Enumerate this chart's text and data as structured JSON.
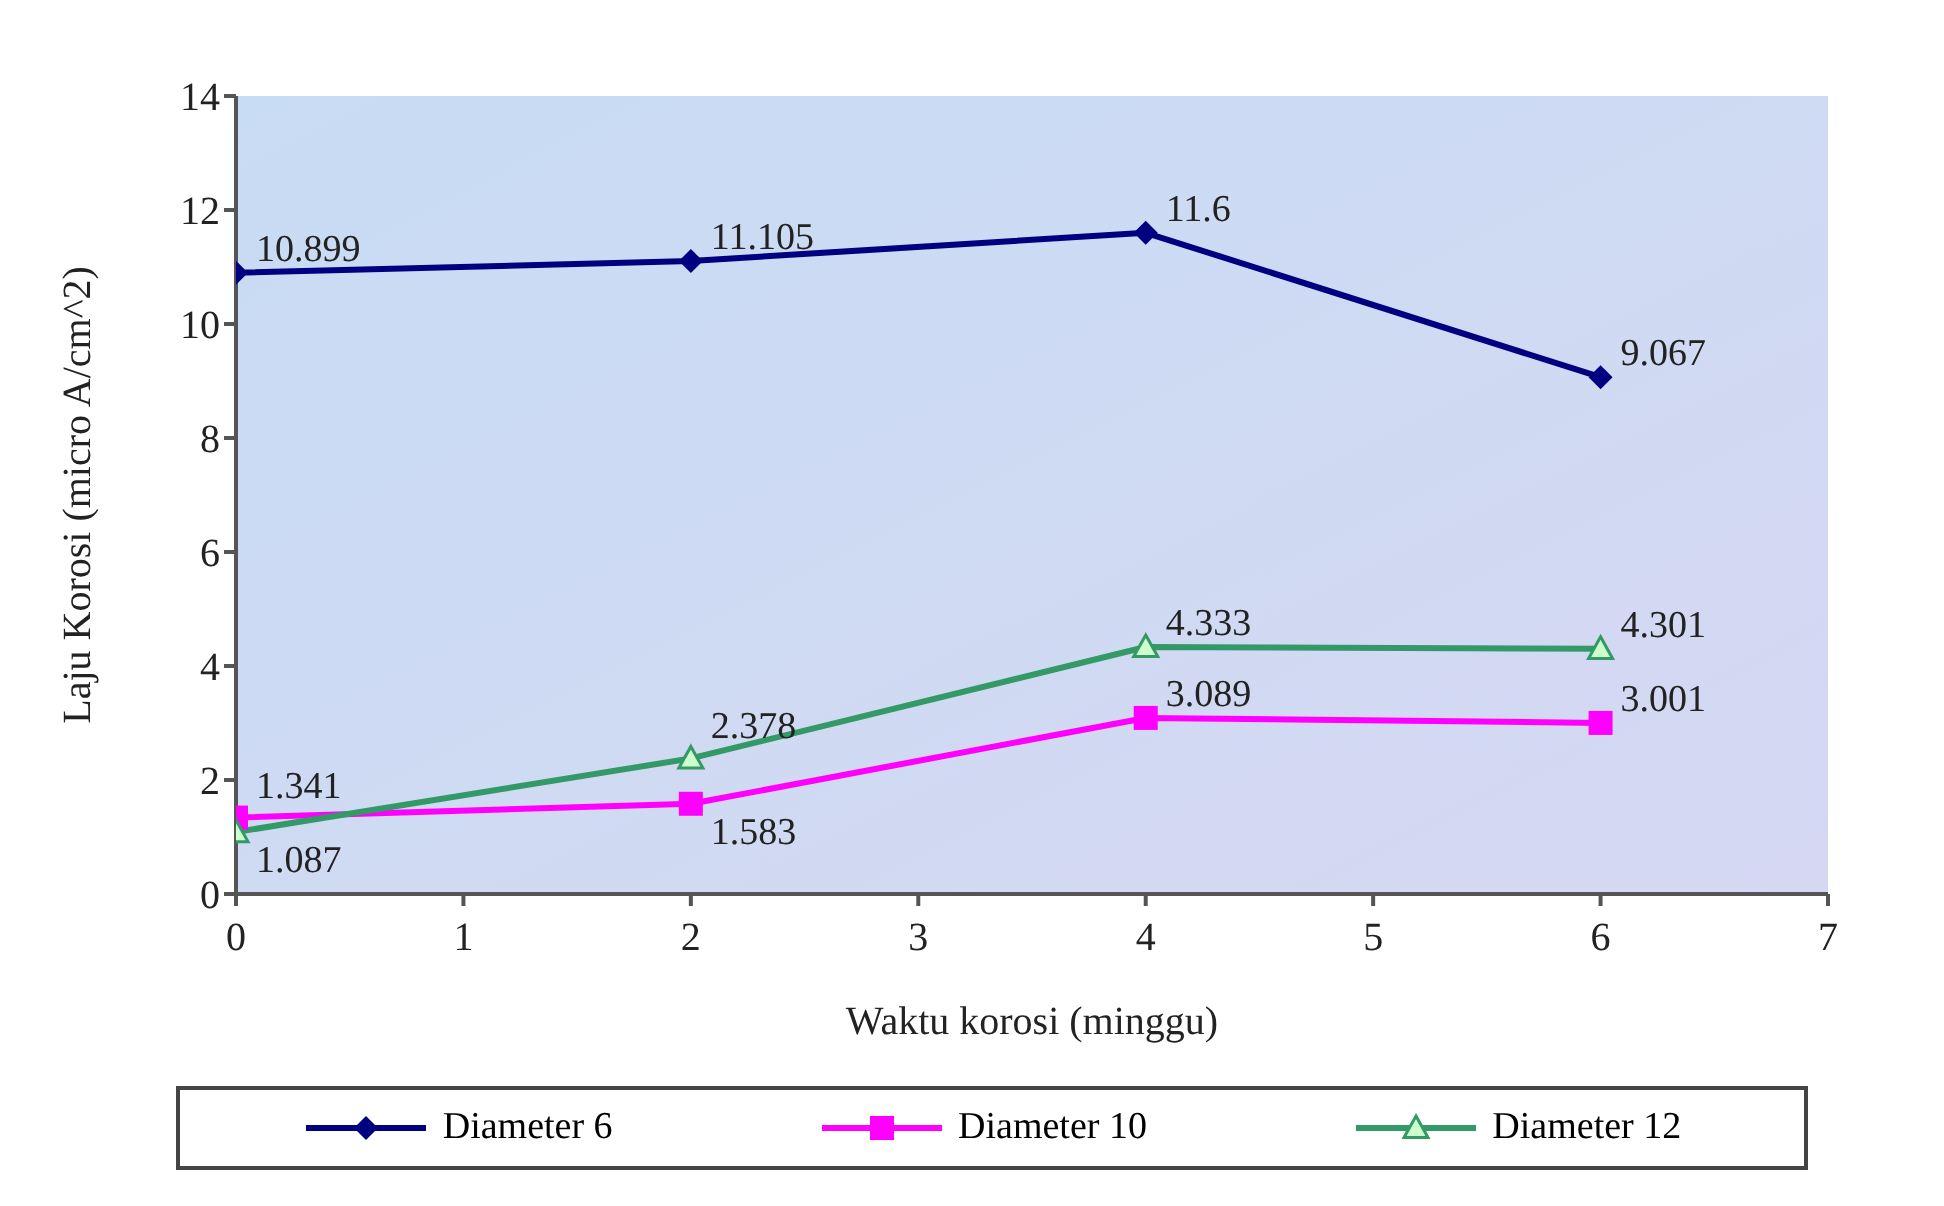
{
  "chart_data": {
    "type": "line",
    "xlabel": "Waktu korosi (minggu)",
    "ylabel": "Laju Korosi (micro A/cm^2)",
    "x": [
      0,
      2,
      4,
      6
    ],
    "series": [
      {
        "name": "Diameter 6",
        "color": "#000080",
        "marker": "diamond",
        "values": [
          10.899,
          11.105,
          11.6,
          9.067
        ]
      },
      {
        "name": "Diameter 10",
        "color": "#ff00ff",
        "marker": "square",
        "values": [
          1.341,
          1.583,
          3.089,
          3.001
        ]
      },
      {
        "name": "Diameter 12",
        "color": "#339966",
        "marker": "triangle",
        "values": [
          1.087,
          2.378,
          4.333,
          4.301
        ]
      }
    ],
    "xlim": [
      0,
      7
    ],
    "xticks": [
      0,
      1,
      2,
      3,
      4,
      5,
      6,
      7
    ],
    "ylim": [
      0,
      14
    ],
    "yticks": [
      0,
      2,
      4,
      6,
      8,
      10,
      12,
      14
    ],
    "legend": "bottom",
    "data_labels": true
  }
}
